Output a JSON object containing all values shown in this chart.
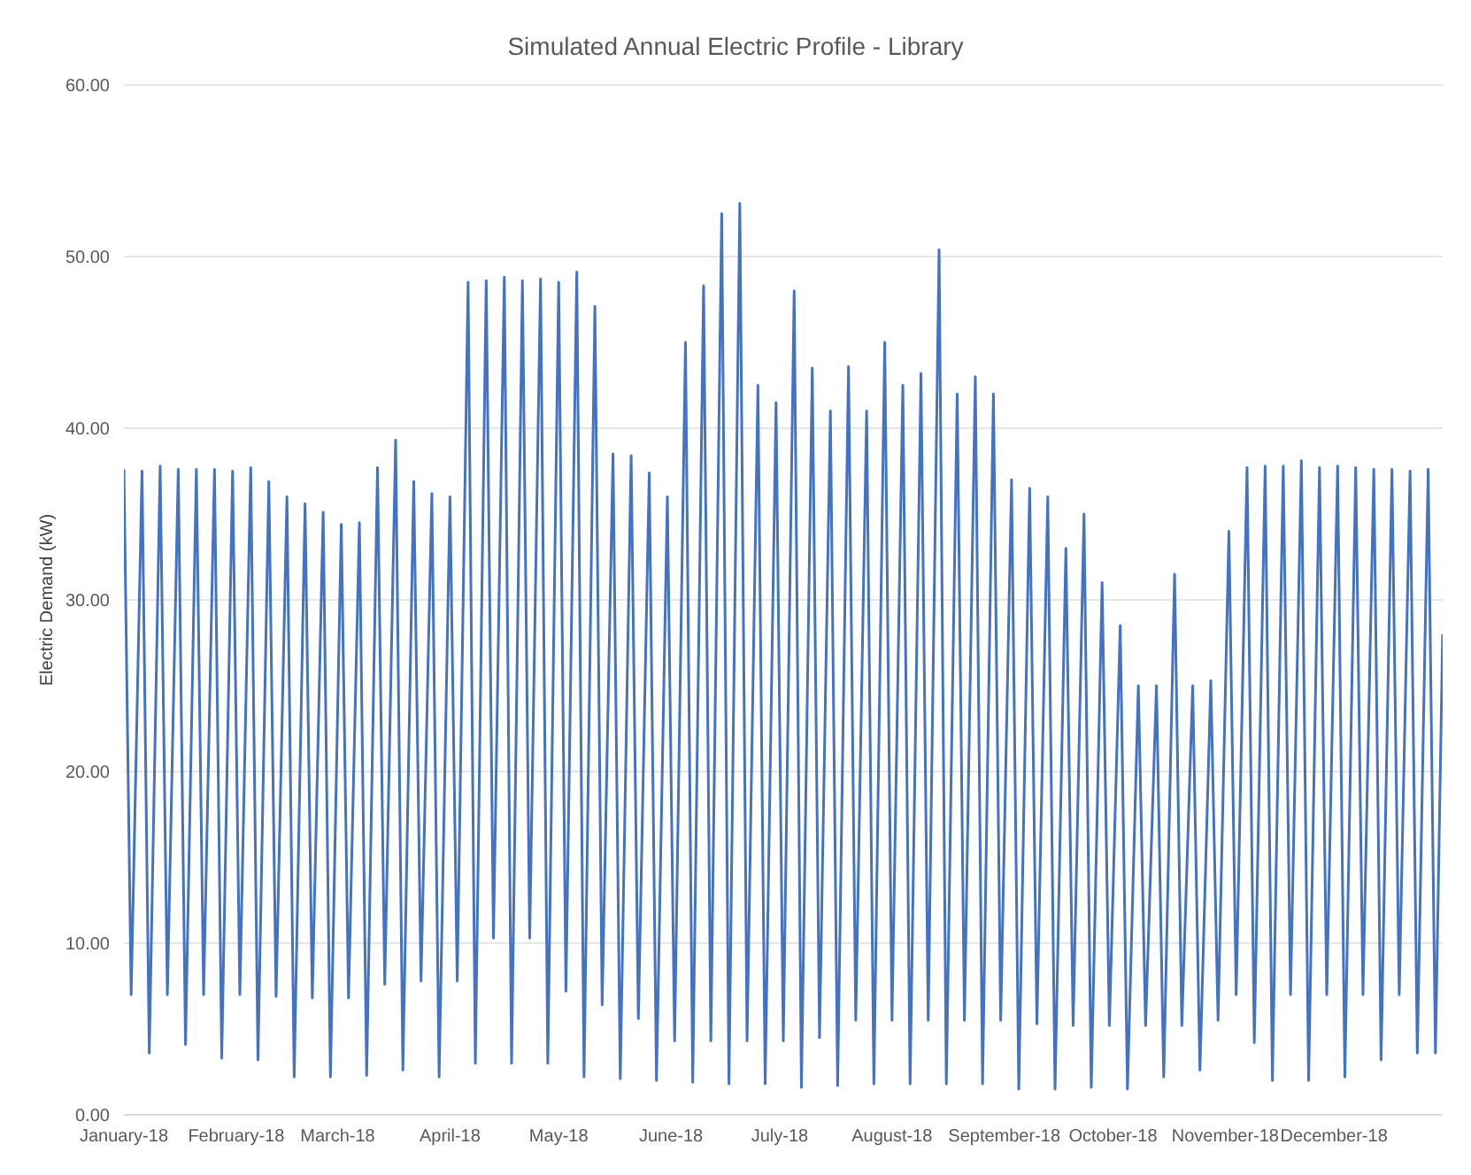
{
  "chart_data": {
    "type": "line",
    "title": "Simulated Annual Electric Profile - Library",
    "ylabel": "Electric Demand (kW)",
    "x": [
      "2018-01-01",
      "2018-01-03",
      "2018-01-06",
      "2018-01-08",
      "2018-01-11",
      "2018-01-13",
      "2018-01-16",
      "2018-01-18",
      "2018-01-21",
      "2018-01-23",
      "2018-01-26",
      "2018-01-28",
      "2018-01-31",
      "2018-02-02",
      "2018-02-05",
      "2018-02-07",
      "2018-02-10",
      "2018-02-12",
      "2018-02-15",
      "2018-02-17",
      "2018-02-20",
      "2018-02-22",
      "2018-02-25",
      "2018-02-27",
      "2018-03-02",
      "2018-03-04",
      "2018-03-07",
      "2018-03-09",
      "2018-03-12",
      "2018-03-14",
      "2018-03-17",
      "2018-03-19",
      "2018-03-22",
      "2018-03-24",
      "2018-03-27",
      "2018-03-29",
      "2018-04-01",
      "2018-04-03",
      "2018-04-06",
      "2018-04-08",
      "2018-04-11",
      "2018-04-13",
      "2018-04-16",
      "2018-04-18",
      "2018-04-21",
      "2018-04-23",
      "2018-04-26",
      "2018-04-28",
      "2018-05-01",
      "2018-05-03",
      "2018-05-06",
      "2018-05-08",
      "2018-05-11",
      "2018-05-13",
      "2018-05-16",
      "2018-05-18",
      "2018-05-21",
      "2018-05-23",
      "2018-05-26",
      "2018-05-28",
      "2018-05-31",
      "2018-06-02",
      "2018-06-05",
      "2018-06-07",
      "2018-06-10",
      "2018-06-12",
      "2018-06-15",
      "2018-06-17",
      "2018-06-20",
      "2018-06-22",
      "2018-06-25",
      "2018-06-27",
      "2018-06-30",
      "2018-07-02",
      "2018-07-05",
      "2018-07-07",
      "2018-07-10",
      "2018-07-12",
      "2018-07-15",
      "2018-07-17",
      "2018-07-20",
      "2018-07-22",
      "2018-07-25",
      "2018-07-27",
      "2018-07-30",
      "2018-08-01",
      "2018-08-04",
      "2018-08-06",
      "2018-08-09",
      "2018-08-11",
      "2018-08-14",
      "2018-08-16",
      "2018-08-19",
      "2018-08-21",
      "2018-08-24",
      "2018-08-26",
      "2018-08-29",
      "2018-08-31",
      "2018-09-03",
      "2018-09-05",
      "2018-09-08",
      "2018-09-10",
      "2018-09-13",
      "2018-09-15",
      "2018-09-18",
      "2018-09-20",
      "2018-09-23",
      "2018-09-25",
      "2018-09-28",
      "2018-09-30",
      "2018-10-03",
      "2018-10-05",
      "2018-10-08",
      "2018-10-10",
      "2018-10-13",
      "2018-10-15",
      "2018-10-18",
      "2018-10-20",
      "2018-10-23",
      "2018-10-25",
      "2018-10-28",
      "2018-10-30",
      "2018-11-02",
      "2018-11-04",
      "2018-11-07",
      "2018-11-09",
      "2018-11-12",
      "2018-11-14",
      "2018-11-17",
      "2018-11-19",
      "2018-11-22",
      "2018-11-24",
      "2018-11-27",
      "2018-11-29",
      "2018-12-02",
      "2018-12-04",
      "2018-12-07",
      "2018-12-09",
      "2018-12-12",
      "2018-12-14",
      "2018-12-17",
      "2018-12-19",
      "2018-12-22",
      "2018-12-24",
      "2018-12-27",
      "2018-12-29",
      "2018-12-31"
    ],
    "series": [
      {
        "color": "#4472c4",
        "values": [
          37.6,
          7.0,
          37.5,
          3.6,
          37.8,
          7.0,
          37.6,
          4.1,
          37.6,
          7.0,
          37.6,
          3.3,
          37.5,
          7.0,
          37.7,
          3.2,
          36.9,
          6.9,
          36.0,
          2.2,
          35.6,
          6.8,
          35.1,
          2.2,
          34.4,
          6.8,
          34.5,
          2.3,
          37.7,
          7.6,
          39.3,
          2.6,
          36.9,
          7.8,
          36.2,
          2.2,
          36.0,
          7.8,
          48.5,
          3.0,
          48.6,
          10.3,
          48.8,
          3.0,
          48.6,
          10.3,
          48.7,
          3.0,
          48.5,
          7.2,
          49.1,
          2.2,
          47.1,
          6.4,
          38.5,
          2.1,
          38.4,
          5.6,
          37.4,
          2.0,
          36.0,
          4.3,
          45.0,
          1.9,
          48.3,
          4.3,
          52.5,
          1.8,
          53.1,
          4.3,
          42.5,
          1.8,
          41.5,
          4.3,
          48.0,
          1.6,
          43.5,
          4.5,
          41.0,
          1.7,
          43.6,
          5.5,
          41.0,
          1.8,
          45.0,
          5.5,
          42.5,
          1.8,
          43.2,
          5.5,
          50.4,
          1.8,
          42.0,
          5.5,
          43.0,
          1.8,
          42.0,
          5.5,
          37.0,
          1.5,
          36.5,
          5.3,
          36.0,
          1.5,
          33.0,
          5.2,
          35.0,
          1.6,
          31.0,
          5.2,
          28.5,
          1.5,
          25.0,
          5.2,
          25.0,
          2.2,
          31.5,
          5.2,
          25.0,
          2.6,
          25.3,
          5.5,
          34.0,
          7.0,
          37.7,
          4.2,
          37.8,
          2.0,
          37.8,
          7.0,
          38.1,
          2.0,
          37.7,
          7.0,
          37.8,
          2.2,
          37.7,
          7.0,
          37.6,
          3.2,
          37.6,
          7.0,
          37.5,
          3.6,
          37.6,
          3.6,
          28.0
        ]
      }
    ],
    "xlim": [
      "2018-01-01",
      "2018-12-31"
    ],
    "xticks": [
      {
        "value": "2018-01-01",
        "label": "January-18"
      },
      {
        "value": "2018-02-01",
        "label": "February-18"
      },
      {
        "value": "2018-03-01",
        "label": "March-18"
      },
      {
        "value": "2018-04-01",
        "label": "April-18"
      },
      {
        "value": "2018-05-01",
        "label": "May-18"
      },
      {
        "value": "2018-06-01",
        "label": "June-18"
      },
      {
        "value": "2018-07-01",
        "label": "July-18"
      },
      {
        "value": "2018-08-01",
        "label": "August-18"
      },
      {
        "value": "2018-09-01",
        "label": "September-18"
      },
      {
        "value": "2018-10-01",
        "label": "October-18"
      },
      {
        "value": "2018-11-01",
        "label": "November-18"
      },
      {
        "value": "2018-12-01",
        "label": "December-18"
      }
    ],
    "ylim": [
      0,
      60
    ],
    "yticks": [
      {
        "value": 0,
        "label": "0.00"
      },
      {
        "value": 10,
        "label": "10.00"
      },
      {
        "value": 20,
        "label": "20.00"
      },
      {
        "value": 30,
        "label": "30.00"
      },
      {
        "value": 40,
        "label": "40.00"
      },
      {
        "value": 50,
        "label": "50.00"
      },
      {
        "value": 60,
        "label": "60.00"
      }
    ],
    "grid": "y",
    "legend": false,
    "marker": "none",
    "line_style": "solid"
  }
}
